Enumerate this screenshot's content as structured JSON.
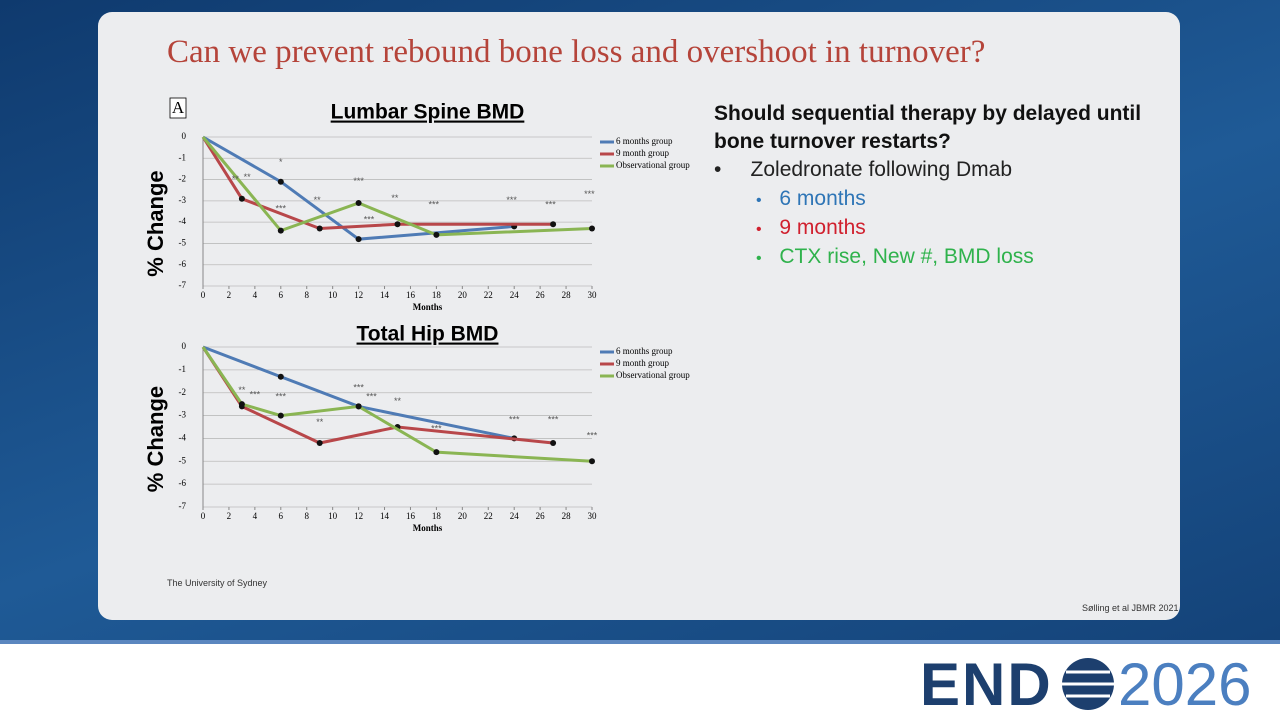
{
  "slide": {
    "title": "Can we prevent rebound bone loss and overshoot in turnover?",
    "panel_label": "A",
    "heading": "Should sequential therapy by delayed until bone turnover restarts?",
    "bullet": "Zoledronate following Dmab",
    "sub_bullets": [
      {
        "text": "6 months",
        "color": "#2e75b6"
      },
      {
        "text": "9 months",
        "color": "#d0202e"
      },
      {
        "text": "CTX rise, New #, BMD loss",
        "color": "#2fb24c"
      }
    ],
    "footer": "The University of Sydney",
    "citation": "Sølling et al JBMR 2021",
    "logo": {
      "left": "END",
      "right": "2026"
    }
  },
  "chart_data": [
    {
      "type": "line",
      "title": "Lumbar Spine BMD",
      "x_label": "Months",
      "y_label": "% Change",
      "xlim": [
        0,
        30
      ],
      "xticks": [
        0,
        2,
        4,
        6,
        8,
        10,
        12,
        14,
        16,
        18,
        20,
        22,
        24,
        26,
        28,
        30
      ],
      "ylim": [
        -7,
        0
      ],
      "yticks": [
        -7,
        -6,
        -5,
        -4,
        -3,
        -2,
        -1,
        0
      ],
      "grid": true,
      "legend": "right",
      "series": [
        {
          "name": "6 months group",
          "color": "#4f7bb5",
          "x": [
            0,
            6,
            12,
            24
          ],
          "values": [
            0,
            -2.1,
            -4.8,
            -4.2
          ]
        },
        {
          "name": "9 month group",
          "color": "#b8474a",
          "x": [
            0,
            3,
            9,
            15,
            27
          ],
          "values": [
            0,
            -2.9,
            -4.3,
            -4.1,
            -4.1
          ]
        },
        {
          "name": "Observational group",
          "color": "#8ab553",
          "x": [
            0,
            6,
            12,
            18,
            30
          ],
          "values": [
            0,
            -4.4,
            -3.1,
            -4.6,
            -4.3
          ]
        }
      ],
      "annotations": [
        {
          "text": "**",
          "x": 2.5,
          "y": -2.0
        },
        {
          "text": "**",
          "x": 3.4,
          "y": -1.9
        },
        {
          "text": "*",
          "x": 6,
          "y": -1.2
        },
        {
          "text": "***",
          "x": 6,
          "y": -3.4
        },
        {
          "text": "**",
          "x": 8.8,
          "y": -3.0
        },
        {
          "text": "***",
          "x": 12,
          "y": -2.1
        },
        {
          "text": "***",
          "x": 12.8,
          "y": -3.9
        },
        {
          "text": "**",
          "x": 14.8,
          "y": -2.9
        },
        {
          "text": "***",
          "x": 17.8,
          "y": -3.2
        },
        {
          "text": "***",
          "x": 23.8,
          "y": -3.0
        },
        {
          "text": "***",
          "x": 26.8,
          "y": -3.2
        },
        {
          "text": "***",
          "x": 29.8,
          "y": -2.7
        }
      ]
    },
    {
      "type": "line",
      "title": "Total Hip BMD",
      "x_label": "Months",
      "y_label": "% Change",
      "xlim": [
        0,
        30
      ],
      "xticks": [
        0,
        2,
        4,
        6,
        8,
        10,
        12,
        14,
        16,
        18,
        20,
        22,
        24,
        26,
        28,
        30
      ],
      "ylim": [
        -7,
        0
      ],
      "yticks": [
        -7,
        -6,
        -5,
        -4,
        -3,
        -2,
        -1,
        0
      ],
      "grid": true,
      "legend": "right",
      "series": [
        {
          "name": "6 months group",
          "color": "#4f7bb5",
          "x": [
            0,
            6,
            12,
            24
          ],
          "values": [
            0,
            -1.3,
            -2.6,
            -4.0
          ]
        },
        {
          "name": "9 month group",
          "color": "#b8474a",
          "x": [
            0,
            3,
            9,
            15,
            27
          ],
          "values": [
            0,
            -2.6,
            -4.2,
            -3.5,
            -4.2
          ]
        },
        {
          "name": "Observational group",
          "color": "#8ab553",
          "x": [
            0,
            3,
            6,
            12,
            18,
            30
          ],
          "values": [
            0,
            -2.5,
            -3.0,
            -2.6,
            -4.6,
            -5.0
          ]
        }
      ],
      "annotations": [
        {
          "text": "**",
          "x": 3,
          "y": -1.9
        },
        {
          "text": "***",
          "x": 4,
          "y": -2.1
        },
        {
          "text": "***",
          "x": 6,
          "y": -2.2
        },
        {
          "text": "**",
          "x": 9,
          "y": -3.3
        },
        {
          "text": "***",
          "x": 12,
          "y": -1.8
        },
        {
          "text": "***",
          "x": 13,
          "y": -2.2
        },
        {
          "text": "**",
          "x": 15,
          "y": -2.4
        },
        {
          "text": "***",
          "x": 18,
          "y": -3.6
        },
        {
          "text": "***",
          "x": 24,
          "y": -3.2
        },
        {
          "text": "***",
          "x": 27,
          "y": -3.2
        },
        {
          "text": "***",
          "x": 30,
          "y": -3.9
        }
      ]
    }
  ]
}
